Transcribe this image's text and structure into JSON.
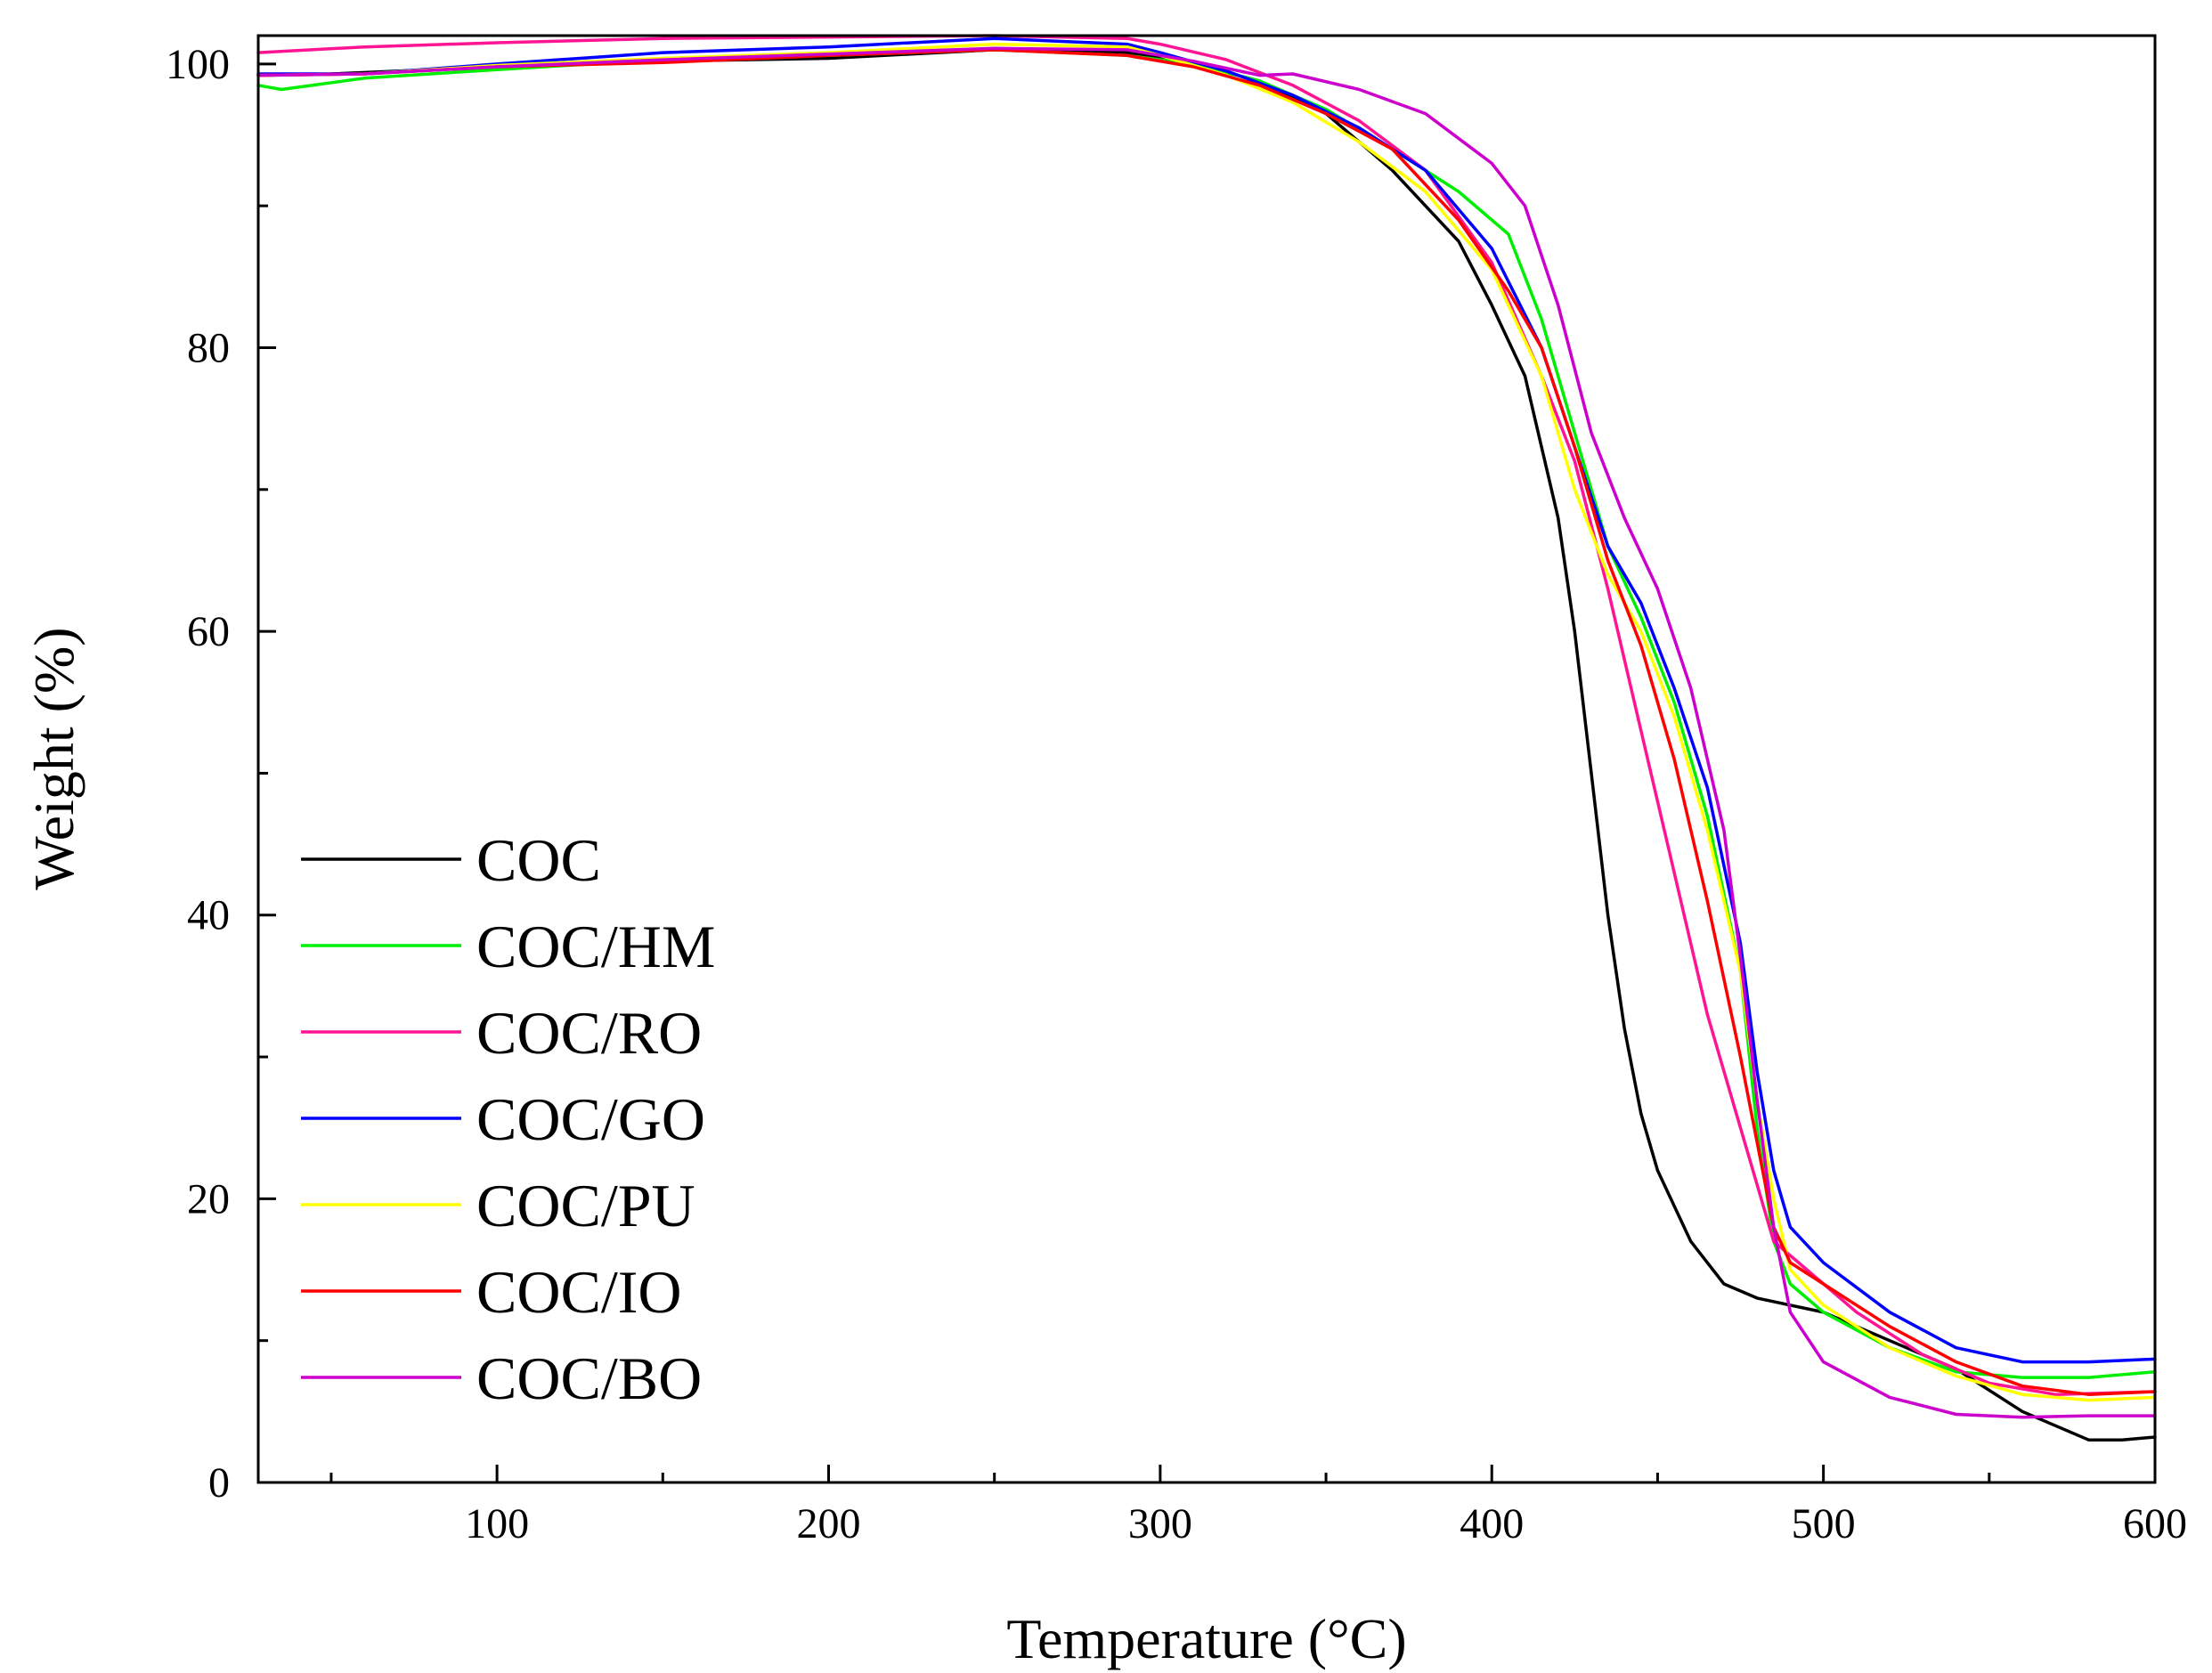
{
  "chart_data": {
    "type": "line",
    "title": "",
    "xlabel": "Temperature (°C)",
    "ylabel": "Weight (%)",
    "xlim": [
      28,
      600
    ],
    "ylim": [
      0,
      102
    ],
    "xticks": [
      100,
      200,
      300,
      400,
      500,
      600
    ],
    "yticks": [
      0,
      20,
      40,
      60,
      80,
      100
    ],
    "legend_position": "lower-left",
    "grid": false,
    "series": [
      {
        "name": "COC",
        "color": "#000000",
        "points": [
          [
            28,
            99.2
          ],
          [
            50,
            99.3
          ],
          [
            100,
            99.8
          ],
          [
            150,
            100.2
          ],
          [
            200,
            100.4
          ],
          [
            250,
            101
          ],
          [
            290,
            100.8
          ],
          [
            310,
            100
          ],
          [
            330,
            98.8
          ],
          [
            350,
            96.5
          ],
          [
            370,
            92.5
          ],
          [
            390,
            87.5
          ],
          [
            400,
            83
          ],
          [
            410,
            78
          ],
          [
            420,
            68
          ],
          [
            425,
            60
          ],
          [
            430,
            50
          ],
          [
            435,
            40
          ],
          [
            440,
            32
          ],
          [
            445,
            26
          ],
          [
            450,
            22
          ],
          [
            460,
            17
          ],
          [
            470,
            14
          ],
          [
            480,
            13
          ],
          [
            500,
            12
          ],
          [
            520,
            10
          ],
          [
            540,
            8
          ],
          [
            560,
            5
          ],
          [
            580,
            3
          ],
          [
            590,
            3
          ],
          [
            600,
            3.2
          ]
        ]
      },
      {
        "name": "COC/HM",
        "color": "#00ee00",
        "points": [
          [
            28,
            98.5
          ],
          [
            35,
            98.2
          ],
          [
            60,
            99
          ],
          [
            100,
            99.6
          ],
          [
            150,
            100.3
          ],
          [
            200,
            100.6
          ],
          [
            250,
            101
          ],
          [
            290,
            100.6
          ],
          [
            310,
            100
          ],
          [
            330,
            98.8
          ],
          [
            350,
            96.8
          ],
          [
            370,
            94
          ],
          [
            390,
            91
          ],
          [
            405,
            88
          ],
          [
            415,
            82
          ],
          [
            425,
            74
          ],
          [
            435,
            66
          ],
          [
            445,
            61
          ],
          [
            455,
            55
          ],
          [
            465,
            47
          ],
          [
            475,
            36
          ],
          [
            480,
            25
          ],
          [
            485,
            17
          ],
          [
            490,
            14
          ],
          [
            500,
            12
          ],
          [
            520,
            9.5
          ],
          [
            540,
            7.8
          ],
          [
            560,
            7.4
          ],
          [
            580,
            7.4
          ],
          [
            600,
            7.8
          ]
        ]
      },
      {
        "name": "COC/RO",
        "color": "#ff1493",
        "points": [
          [
            28,
            100.8
          ],
          [
            60,
            101.2
          ],
          [
            100,
            101.5
          ],
          [
            150,
            101.8
          ],
          [
            200,
            101.9
          ],
          [
            250,
            102
          ],
          [
            290,
            101.8
          ],
          [
            300,
            101.4
          ],
          [
            320,
            100.3
          ],
          [
            340,
            98.5
          ],
          [
            360,
            96
          ],
          [
            380,
            92.5
          ],
          [
            400,
            86
          ],
          [
            415,
            78
          ],
          [
            425,
            72
          ],
          [
            435,
            63
          ],
          [
            445,
            53
          ],
          [
            455,
            43
          ],
          [
            465,
            33
          ],
          [
            475,
            25
          ],
          [
            485,
            17
          ],
          [
            495,
            15
          ],
          [
            510,
            12
          ],
          [
            530,
            9
          ],
          [
            550,
            7
          ],
          [
            570,
            6.2
          ],
          [
            600,
            6.4
          ]
        ]
      },
      {
        "name": "COC/GO",
        "color": "#0000ff",
        "points": [
          [
            28,
            99.3
          ],
          [
            60,
            99.3
          ],
          [
            100,
            100
          ],
          [
            150,
            100.8
          ],
          [
            200,
            101.2
          ],
          [
            250,
            101.8
          ],
          [
            290,
            101.4
          ],
          [
            300,
            100.8
          ],
          [
            320,
            99.5
          ],
          [
            340,
            97.8
          ],
          [
            360,
            95.5
          ],
          [
            380,
            92.5
          ],
          [
            400,
            87
          ],
          [
            415,
            80
          ],
          [
            425,
            73
          ],
          [
            435,
            66
          ],
          [
            445,
            62
          ],
          [
            455,
            56
          ],
          [
            465,
            49
          ],
          [
            475,
            38
          ],
          [
            480,
            29
          ],
          [
            485,
            22
          ],
          [
            490,
            18
          ],
          [
            500,
            15.5
          ],
          [
            520,
            12
          ],
          [
            540,
            9.5
          ],
          [
            560,
            8.5
          ],
          [
            580,
            8.5
          ],
          [
            600,
            8.7
          ]
        ]
      },
      {
        "name": "COC/PU",
        "color": "#ffff00",
        "points": [
          [
            28,
            99.2
          ],
          [
            60,
            99.3
          ],
          [
            100,
            99.9
          ],
          [
            150,
            100.4
          ],
          [
            200,
            100.8
          ],
          [
            250,
            101.4
          ],
          [
            290,
            101.2
          ],
          [
            300,
            100.6
          ],
          [
            320,
            99.2
          ],
          [
            340,
            97.3
          ],
          [
            360,
            94.5
          ],
          [
            380,
            91
          ],
          [
            400,
            85.5
          ],
          [
            415,
            78
          ],
          [
            425,
            70
          ],
          [
            435,
            64
          ],
          [
            445,
            60
          ],
          [
            455,
            54
          ],
          [
            465,
            46
          ],
          [
            475,
            36
          ],
          [
            480,
            27
          ],
          [
            485,
            20
          ],
          [
            490,
            15
          ],
          [
            500,
            12.5
          ],
          [
            520,
            9.5
          ],
          [
            540,
            7.5
          ],
          [
            560,
            6.2
          ],
          [
            580,
            5.8
          ],
          [
            600,
            6
          ]
        ]
      },
      {
        "name": "COC/IO",
        "color": "#ff0000",
        "points": [
          [
            28,
            99.2
          ],
          [
            60,
            99.3
          ],
          [
            100,
            99.8
          ],
          [
            150,
            100.1
          ],
          [
            200,
            100.6
          ],
          [
            250,
            101
          ],
          [
            290,
            100.6
          ],
          [
            310,
            99.8
          ],
          [
            330,
            98.5
          ],
          [
            350,
            96.5
          ],
          [
            370,
            94
          ],
          [
            390,
            89
          ],
          [
            405,
            84
          ],
          [
            415,
            80
          ],
          [
            425,
            73
          ],
          [
            435,
            65
          ],
          [
            445,
            59
          ],
          [
            455,
            51
          ],
          [
            465,
            41
          ],
          [
            475,
            30
          ],
          [
            480,
            24
          ],
          [
            485,
            18
          ],
          [
            490,
            15.5
          ],
          [
            500,
            14
          ],
          [
            520,
            11
          ],
          [
            540,
            8.5
          ],
          [
            560,
            6.8
          ],
          [
            580,
            6.2
          ],
          [
            600,
            6.4
          ]
        ]
      },
      {
        "name": "COC/BO",
        "color": "#cc00cc",
        "points": [
          [
            28,
            99.2
          ],
          [
            60,
            99.3
          ],
          [
            100,
            99.8
          ],
          [
            150,
            100.3
          ],
          [
            200,
            100.7
          ],
          [
            250,
            101.1
          ],
          [
            290,
            101
          ],
          [
            310,
            100.2
          ],
          [
            330,
            99.2
          ],
          [
            340,
            99.3
          ],
          [
            360,
            98.2
          ],
          [
            380,
            96.5
          ],
          [
            400,
            93
          ],
          [
            410,
            90
          ],
          [
            420,
            83
          ],
          [
            430,
            74
          ],
          [
            440,
            68
          ],
          [
            450,
            63
          ],
          [
            460,
            56
          ],
          [
            470,
            46
          ],
          [
            475,
            37
          ],
          [
            480,
            27
          ],
          [
            485,
            18
          ],
          [
            490,
            12
          ],
          [
            500,
            8.5
          ],
          [
            520,
            6
          ],
          [
            540,
            4.8
          ],
          [
            560,
            4.6
          ],
          [
            580,
            4.7
          ],
          [
            600,
            4.7
          ]
        ]
      }
    ]
  }
}
